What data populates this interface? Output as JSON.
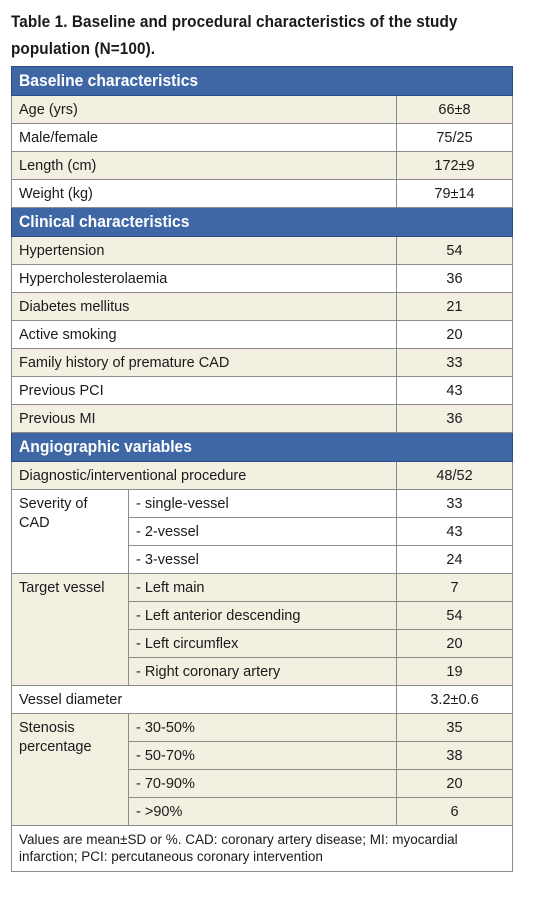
{
  "caption": "Table 1. Baseline and procedural characteristics of the study population (N=100).",
  "sections": {
    "baseline": {
      "title": "Baseline characteristics",
      "rows": [
        {
          "label": "Age (yrs)",
          "value": "66±8"
        },
        {
          "label": "Male/female",
          "value": "75/25"
        },
        {
          "label": "Length (cm)",
          "value": "172±9"
        },
        {
          "label": "Weight (kg)",
          "value": "79±14"
        }
      ]
    },
    "clinical": {
      "title": "Clinical characteristics",
      "rows": [
        {
          "label": "Hypertension",
          "value": "54"
        },
        {
          "label": "Hypercholesterolaemia",
          "value": "36"
        },
        {
          "label": "Diabetes mellitus",
          "value": "21"
        },
        {
          "label": "Active smoking",
          "value": "20"
        },
        {
          "label": "Family history of premature CAD",
          "value": "33"
        },
        {
          "label": "Previous PCI",
          "value": "43"
        },
        {
          "label": "Previous MI",
          "value": "36"
        }
      ]
    },
    "angiographic": {
      "title": "Angiographic variables",
      "procedure": {
        "label": "Diagnostic/interventional procedure",
        "value": "48/52"
      },
      "severity": {
        "label": "Severity of CAD",
        "rows": [
          {
            "label": "- single-vessel",
            "value": "33"
          },
          {
            "label": "- 2-vessel",
            "value": "43"
          },
          {
            "label": "- 3-vessel",
            "value": "24"
          }
        ]
      },
      "target": {
        "label": "Target vessel",
        "rows": [
          {
            "label": "- Left main",
            "value": "7"
          },
          {
            "label": "- Left anterior descending",
            "value": "54"
          },
          {
            "label": "- Left circumflex",
            "value": "20"
          },
          {
            "label": "- Right coronary artery",
            "value": "19"
          }
        ]
      },
      "diameter": {
        "label": "Vessel diameter",
        "value": "3.2±0.6"
      },
      "stenosis": {
        "label": "Stenosis percentage",
        "rows": [
          {
            "label": "- 30-50%",
            "value": "35"
          },
          {
            "label": "- 50-70%",
            "value": "38"
          },
          {
            "label": "- 70-90%",
            "value": "20"
          },
          {
            "label": "- >90%",
            "value": "6"
          }
        ]
      }
    }
  },
  "footnote": "Values are mean±SD or %. CAD: coronary artery disease; MI: myocardial infarction; PCI: percutaneous coronary intervention",
  "colors": {
    "header_bg": "#3f67a5",
    "band": "#f3efe1",
    "border": "#8c8c8c"
  }
}
